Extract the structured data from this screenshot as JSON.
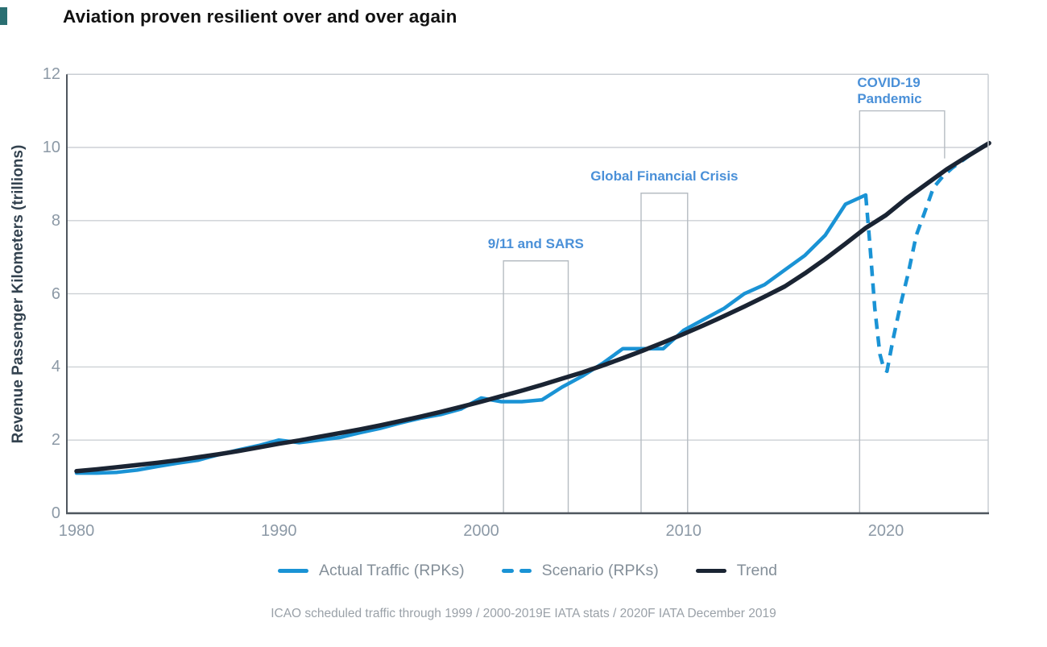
{
  "title": "Aviation proven resilient over and over again",
  "footer": {
    "source": "ICAO scheduled traffic through 1999 / 2000-2019E IATA stats / 2020F IATA December 2019"
  },
  "colors": {
    "actual_blue": "#1a93d5",
    "annotation_blue": "#4a90d8",
    "trend_dark": "#1a2433",
    "gridline": "#cdd1d5",
    "event_box": "#b6bcc2",
    "axis_dark": "#4f565e",
    "axis_light": "#c9ced3",
    "tick_label": "#8c99a6",
    "legend_text": "#848f99"
  },
  "legend": {
    "items": [
      {
        "label": "Actual Traffic (RPKs)",
        "swatch": "solid-blue-line"
      },
      {
        "label": "Scenario (RPKs)",
        "swatch": "dashed-blue-line"
      },
      {
        "label": "Trend",
        "swatch": "solid-dark-line"
      }
    ]
  },
  "chart_data": {
    "type": "line",
    "title": "Aviation proven resilient over and over again",
    "xlabel": "",
    "ylabel": "Revenue Passenger Kilometers (trillions)",
    "xlim": [
      1979.5,
      2025.1
    ],
    "ylim": [
      0,
      12
    ],
    "x_ticks": [
      1980,
      1990,
      2000,
      2010,
      2020
    ],
    "y_ticks": [
      0,
      2,
      4,
      6,
      8,
      10,
      12
    ],
    "grid": "horizontal",
    "legend_position": "bottom",
    "series": [
      {
        "name": "Actual Traffic (RPKs)",
        "style": "solid",
        "color": "#1a93d5",
        "x": [
          1980,
          1981,
          1982,
          1983,
          1984,
          1985,
          1986,
          1987,
          1988,
          1989,
          1990,
          1991,
          1992,
          1993,
          1994,
          1995,
          1996,
          1997,
          1998,
          1999,
          2000,
          2001,
          2002,
          2003,
          2004,
          2005,
          2006,
          2007,
          2008,
          2009,
          2010,
          2011,
          2012,
          2013,
          2014,
          2015,
          2016,
          2017,
          2018,
          2019
        ],
        "values": [
          1.1,
          1.1,
          1.12,
          1.18,
          1.28,
          1.37,
          1.45,
          1.6,
          1.73,
          1.85,
          2.0,
          1.93,
          2.0,
          2.07,
          2.2,
          2.32,
          2.47,
          2.6,
          2.7,
          2.85,
          3.15,
          3.05,
          3.05,
          3.1,
          3.45,
          3.75,
          4.1,
          4.5,
          4.5,
          4.5,
          5.0,
          5.3,
          5.6,
          6.0,
          6.25,
          6.65,
          7.05,
          7.6,
          8.45,
          8.7
        ]
      },
      {
        "name": "Scenario (RPKs)",
        "style": "dashed",
        "color": "#1a93d5",
        "x": [
          2019,
          2019.2,
          2019.45,
          2019.7,
          2019.9,
          2020.05,
          2020.35,
          2020.7,
          2021.1,
          2021.5,
          2021.9,
          2022.35,
          2022.8,
          2023.3,
          2023.8,
          2024.3,
          2024.7,
          2025.1
        ],
        "values": [
          8.7,
          7.4,
          5.6,
          4.35,
          3.95,
          3.88,
          4.75,
          5.65,
          6.55,
          7.6,
          8.2,
          8.9,
          9.2,
          9.45,
          9.65,
          9.85,
          10.0,
          10.12
        ]
      },
      {
        "name": "Trend",
        "style": "solid",
        "color": "#1a2433",
        "x": [
          1980,
          1981,
          1982,
          1983,
          1984,
          1985,
          1986,
          1987,
          1988,
          1989,
          1990,
          1991,
          1992,
          1993,
          1994,
          1995,
          1996,
          1997,
          1998,
          1999,
          2000,
          2001,
          2002,
          2003,
          2004,
          2005,
          2006,
          2007,
          2008,
          2009,
          2010,
          2011,
          2012,
          2013,
          2014,
          2015,
          2016,
          2017,
          2018,
          2019,
          2020,
          2021,
          2022,
          2023,
          2024,
          2025.1
        ],
        "values": [
          1.15,
          1.2,
          1.26,
          1.32,
          1.38,
          1.45,
          1.53,
          1.61,
          1.7,
          1.8,
          1.9,
          1.99,
          2.09,
          2.19,
          2.29,
          2.4,
          2.52,
          2.64,
          2.77,
          2.91,
          3.05,
          3.2,
          3.35,
          3.51,
          3.68,
          3.85,
          4.04,
          4.24,
          4.45,
          4.67,
          4.9,
          5.14,
          5.39,
          5.65,
          5.92,
          6.2,
          6.56,
          6.95,
          7.37,
          7.8,
          8.15,
          8.6,
          9.0,
          9.4,
          9.75,
          10.12
        ]
      }
    ],
    "annotations": [
      {
        "label": "9/11 and SARS",
        "year_start": 2001.1,
        "year_end": 2004.3,
        "top_value": 6.9
      },
      {
        "label": "Global Financial Crisis",
        "year_start": 2007.9,
        "year_end": 2010.2,
        "top_value": 8.75
      },
      {
        "label": "COVID-19 Pandemic",
        "year_start": 2018.7,
        "year_end": 2022.9,
        "top_value": 11.0,
        "right_edge_stops_at_value": 9.7
      }
    ]
  }
}
